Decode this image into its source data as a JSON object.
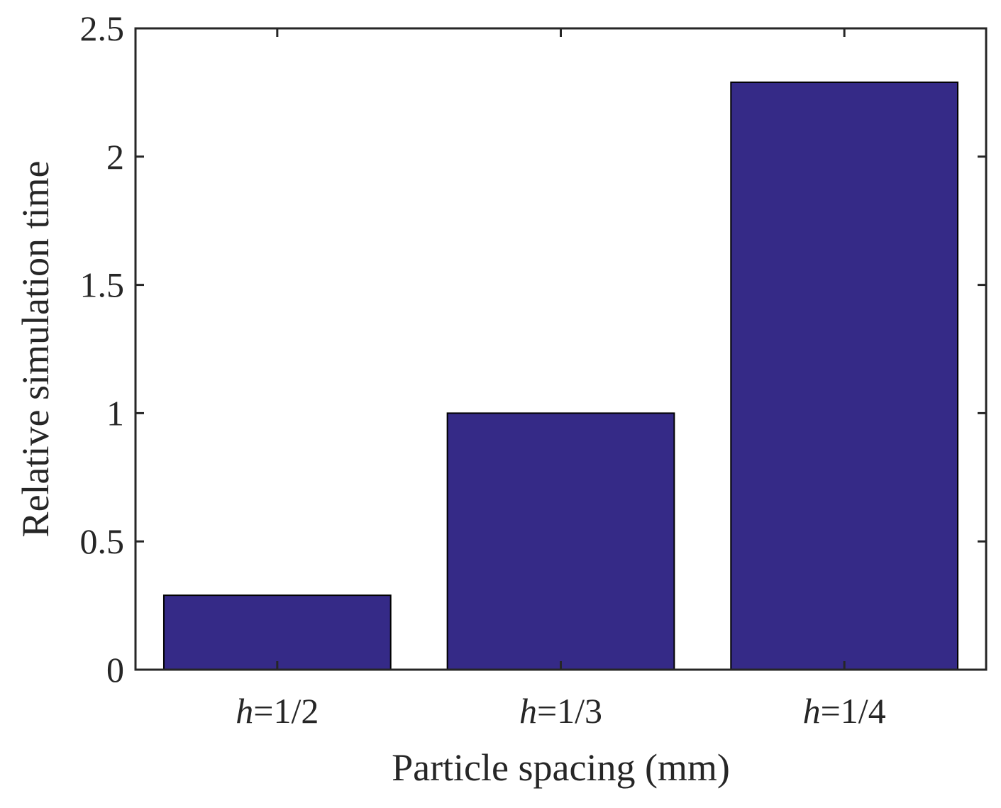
{
  "chart_data": {
    "type": "bar",
    "categories": [
      {
        "var": "h",
        "rest": "=1/2"
      },
      {
        "var": "h",
        "rest": "=1/3"
      },
      {
        "var": "h",
        "rest": "=1/4"
      }
    ],
    "values": [
      0.29,
      1.0,
      2.29
    ],
    "title": "",
    "xlabel": "Particle spacing (mm)",
    "ylabel": "Relative simulation time",
    "ylim": [
      0,
      2.5
    ],
    "yticks": [
      "0",
      "0.5",
      "1",
      "1.5",
      "2",
      "2.5"
    ],
    "grid": false,
    "bar_color": "#352a87",
    "axis_color": "#262626"
  }
}
